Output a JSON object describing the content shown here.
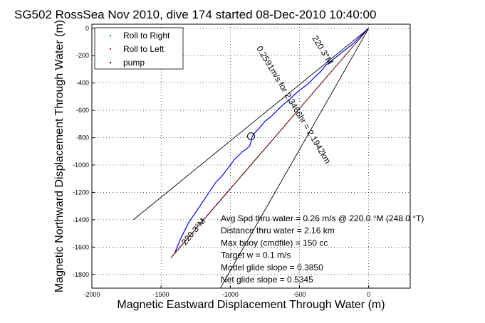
{
  "chart_data": {
    "type": "line",
    "title": "SG502 RossSea Nov 2010, dive 174 started 08-Dec-2010 10:40:00",
    "xlabel": "Magnetic Eastward Displacement Through Water (m)",
    "ylabel": "Magnetic Northward Displacement Through Water (m)",
    "xlim": [
      -2000,
      300
    ],
    "ylim": [
      -1900,
      30
    ],
    "x_ticks": [
      -2000,
      -1500,
      -1000,
      -500,
      0
    ],
    "x_tick_labels": [
      "-2000",
      "-1500",
      "-1000",
      "-500",
      "0"
    ],
    "y_ticks": [
      0,
      -200,
      -400,
      -600,
      -800,
      -1000,
      -1200,
      -1400,
      -1600,
      -1800
    ],
    "y_tick_labels": [
      "0",
      "-200",
      "-400",
      "-600",
      "-800",
      "-1000",
      "-1200",
      "-1400",
      "-1600",
      "-1800"
    ],
    "grid": true,
    "legend": {
      "placement": "top-left",
      "entries": [
        {
          "label": "Roll to Right",
          "color": "#00aa00",
          "marker": "dot"
        },
        {
          "label": "Roll to Left",
          "color": "#ff0000",
          "marker": "dot"
        },
        {
          "label": "pump",
          "color": "#000000",
          "marker": "dot"
        }
      ]
    },
    "series": [
      {
        "color": "#0000ff",
        "style": "line",
        "x": [
          0,
          -15,
          -40,
          -70,
          -110,
          -160,
          -210,
          -260,
          -310,
          -350,
          -395,
          -430,
          -470,
          -520,
          -570,
          -620,
          -660,
          -700,
          -750,
          -790,
          -820,
          -835,
          -845,
          -850,
          -860,
          -880,
          -910,
          -940,
          -970,
          -1000,
          -1030,
          -1060,
          -1100,
          -1140,
          -1180,
          -1220,
          -1260,
          -1300,
          -1330,
          -1360,
          -1380,
          -1400
        ],
        "y": [
          0,
          -10,
          -40,
          -70,
          -110,
          -150,
          -190,
          -230,
          -270,
          -320,
          -360,
          -400,
          -430,
          -470,
          -520,
          -560,
          -600,
          -640,
          -680,
          -730,
          -760,
          -780,
          -800,
          -830,
          -860,
          -880,
          -900,
          -930,
          -960,
          -1000,
          -1040,
          -1080,
          -1120,
          -1180,
          -1240,
          -1300,
          -1360,
          -1420,
          -1480,
          -1540,
          -1590,
          -1640
        ]
      },
      {
        "color": "#ff0000",
        "style": "dots",
        "x": [
          0,
          -1420
        ],
        "y": [
          0,
          -1660
        ]
      }
    ],
    "reference_lines": [
      {
        "x": [
          0,
          -1700
        ],
        "y": [
          0,
          -1400
        ],
        "color": "#000000"
      },
      {
        "x": [
          0,
          -1100
        ],
        "y": [
          0,
          -1950
        ],
        "color": "#000000"
      },
      {
        "x": [
          0,
          -1430
        ],
        "y": [
          0,
          -1680
        ],
        "color": "#000000"
      }
    ],
    "markers": [
      {
        "type": "circle",
        "x": -850,
        "y": -790,
        "color": "#000000"
      }
    ],
    "annotations": {
      "line_labels": [
        {
          "text": "220.3°M",
          "x": -350,
          "y": -170,
          "angle_deg": 59
        },
        {
          "text": "0.2591m/s for 2.3466hr = 2.1942km",
          "x": -560,
          "y": -570,
          "angle_deg": 59
        },
        {
          "text": "220.3°M",
          "x": -1250,
          "y": -1500,
          "angle_deg": -50
        }
      ],
      "stats": [
        "Avg Spd thru water =  0.26 m/s @ 220.0    °M (248.0 °T)",
        "Distance thru water =  2.16 km",
        "Max buoy (cmdfile) = 150 cc",
        "Target w = 0.1 m/s",
        "Model glide slope = 0.3850",
        "Net glide slope = 0.5345"
      ]
    }
  }
}
